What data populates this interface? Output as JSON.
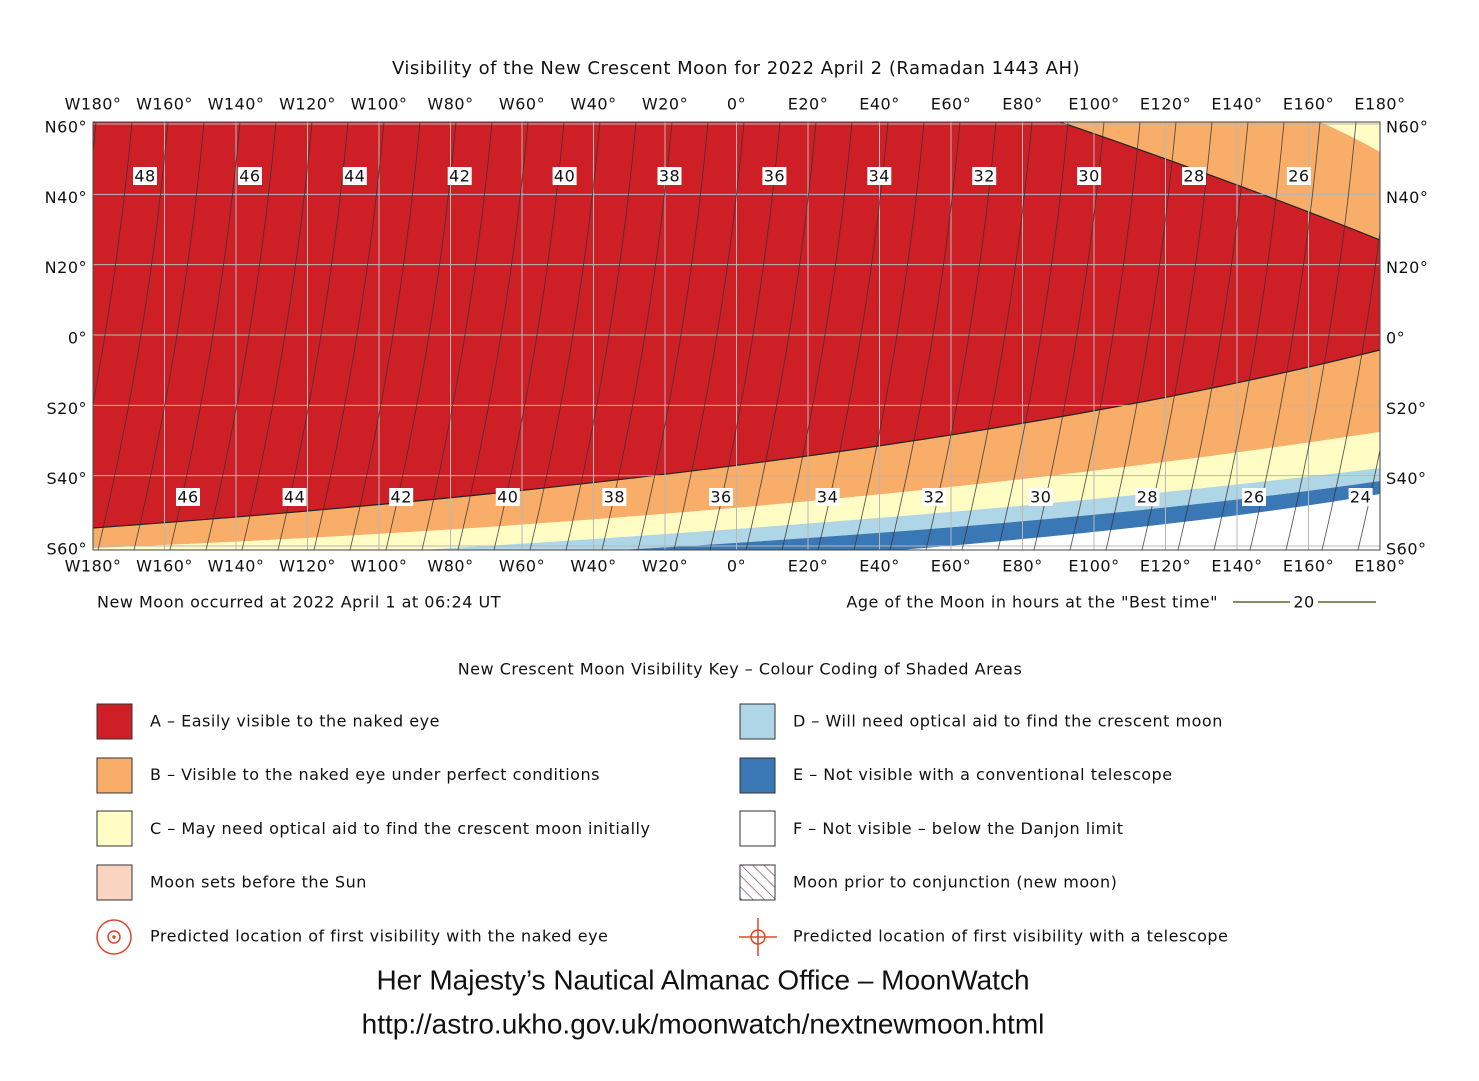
{
  "title": "Visibility of the New Crescent Moon for 2022 April 2 (Ramadan 1443 AH)",
  "longitude_labels": [
    "W180°",
    "W160°",
    "W140°",
    "W120°",
    "W100°",
    "W80°",
    "W60°",
    "W40°",
    "W20°",
    "0°",
    "E20°",
    "E40°",
    "E60°",
    "E80°",
    "E100°",
    "E120°",
    "E140°",
    "E160°",
    "E180°"
  ],
  "latitude_labels": [
    "N60°",
    "N40°",
    "N20°",
    "0°",
    "S20°",
    "S40°",
    "S60°"
  ],
  "age_contour_labels": {
    "north": [
      48,
      46,
      44,
      42,
      40,
      38,
      36,
      34,
      32,
      30,
      28,
      26
    ],
    "south": [
      46,
      44,
      42,
      40,
      38,
      36,
      34,
      32,
      30,
      28,
      26,
      24
    ]
  },
  "new_moon_note": "New Moon occurred at 2022 April 1 at 06:24 UT",
  "age_key": {
    "label": "Age of the Moon in hours at the \"Best time\"",
    "sample": "20"
  },
  "key": {
    "title": "New Crescent Moon Visibility Key – Colour Coding of Shaded Areas",
    "left": [
      "A – Easily visible to the naked eye",
      "B – Visible to the naked eye under perfect conditions",
      "C – May need optical aid to find the crescent moon initially",
      "Moon sets before the Sun",
      "Predicted location of first visibility with the naked eye"
    ],
    "right": [
      "D – Will need optical aid to find the crescent moon",
      "E – Not visible with a conventional telescope",
      "F – Not visible – below the Danjon limit",
      "Moon prior to conjunction (new moon)",
      "Predicted location of first visibility with a telescope"
    ]
  },
  "credit": [
    "Her Majesty’s Nautical Almanac Office – MoonWatch",
    "http://astro.ukho.gov.uk/moonwatch/nextnewmoon.html"
  ]
}
